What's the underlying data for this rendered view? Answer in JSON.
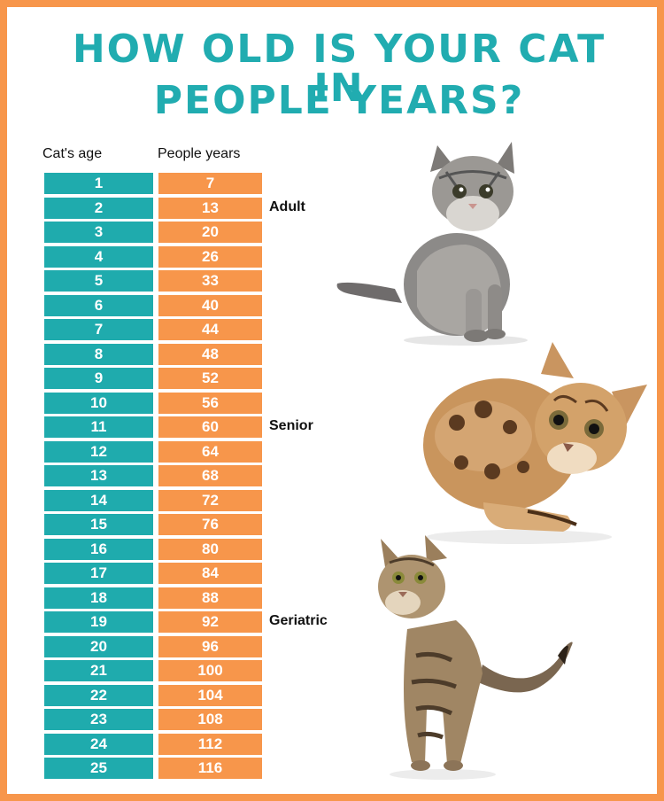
{
  "title": {
    "line1": "HOW OLD IS YOUR CAT IN",
    "line2": "PEOPLE YEARS?"
  },
  "columns": {
    "cat_age": "Cat's age",
    "people_years": "People years"
  },
  "rows": [
    {
      "cat_age": "1",
      "people_years": "7"
    },
    {
      "cat_age": "2",
      "people_years": "13"
    },
    {
      "cat_age": "3",
      "people_years": "20"
    },
    {
      "cat_age": "4",
      "people_years": "26"
    },
    {
      "cat_age": "5",
      "people_years": "33"
    },
    {
      "cat_age": "6",
      "people_years": "40"
    },
    {
      "cat_age": "7",
      "people_years": "44"
    },
    {
      "cat_age": "8",
      "people_years": "48"
    },
    {
      "cat_age": "9",
      "people_years": "52"
    },
    {
      "cat_age": "10",
      "people_years": "56"
    },
    {
      "cat_age": "11",
      "people_years": "60"
    },
    {
      "cat_age": "12",
      "people_years": "64"
    },
    {
      "cat_age": "13",
      "people_years": "68"
    },
    {
      "cat_age": "14",
      "people_years": "72"
    },
    {
      "cat_age": "15",
      "people_years": "76"
    },
    {
      "cat_age": "16",
      "people_years": "80"
    },
    {
      "cat_age": "17",
      "people_years": "84"
    },
    {
      "cat_age": "18",
      "people_years": "88"
    },
    {
      "cat_age": "19",
      "people_years": "92"
    },
    {
      "cat_age": "20",
      "people_years": "96"
    },
    {
      "cat_age": "21",
      "people_years": "100"
    },
    {
      "cat_age": "22",
      "people_years": "104"
    },
    {
      "cat_age": "23",
      "people_years": "108"
    },
    {
      "cat_age": "24",
      "people_years": "112"
    },
    {
      "cat_age": "25",
      "people_years": "116"
    }
  ],
  "stages": [
    {
      "label": "Adult",
      "row": 1
    },
    {
      "label": "Senior",
      "row": 10
    },
    {
      "label": "Geriatric",
      "row": 18
    }
  ],
  "colors": {
    "teal": "#1fabad",
    "orange": "#f7964b",
    "title": "#21acb0"
  }
}
